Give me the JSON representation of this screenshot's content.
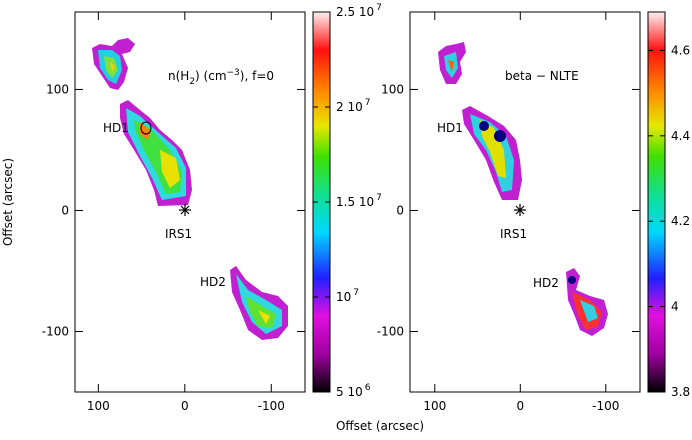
{
  "chart_data": [
    {
      "type": "heatmap",
      "title": [
        "n(H",
        "2",
        ") (cm",
        "−3",
        "), f=0"
      ],
      "xlabel": "Offset (arcsec)",
      "ylabel": "Offset (arcsec)",
      "xlim": [
        127,
        -139
      ],
      "ylim": [
        -150,
        164
      ],
      "xticks": [
        100,
        0,
        -100
      ],
      "yticks": [
        100,
        0,
        -100
      ],
      "clim": [
        5000000,
        25000000
      ],
      "cticks": [
        {
          "value": 5000000,
          "label": "5 10",
          "sup": "6"
        },
        {
          "value": 10000000,
          "label": "10",
          "sup": "7"
        },
        {
          "value": 15000000,
          "label": "1.5 10",
          "sup": "7"
        },
        {
          "value": 20000000,
          "label": "2 10",
          "sup": "7"
        },
        {
          "value": 25000000,
          "label": "2.5 10",
          "sup": "7"
        }
      ],
      "annotations": [
        "HD1",
        "IRS1",
        "HD2"
      ]
    },
    {
      "type": "heatmap",
      "title": [
        "beta − NLTE"
      ],
      "xlim": [
        129,
        -140
      ],
      "ylim": [
        -150,
        164
      ],
      "xticks": [
        100,
        0,
        -100
      ],
      "yticks": [
        100,
        0,
        -100
      ],
      "clim": [
        3.8,
        4.69
      ],
      "cticks": [
        3.8,
        4,
        4.2,
        4.4,
        4.6
      ],
      "annotations": [
        "HD1",
        "IRS1",
        "HD2"
      ]
    }
  ]
}
